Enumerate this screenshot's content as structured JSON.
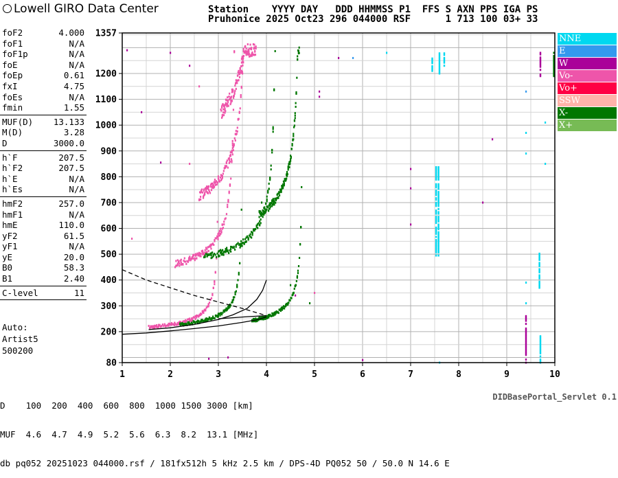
{
  "header": {
    "logo": "Lowell GIRO Data Center",
    "line1": "Station    YYYY DAY   DDD HHMMSS P1  FFS S AXN PPS IGA PS",
    "line2": "Pruhonice 2025 Oct23 296 044000 RSF      1 713 100 03+ 33"
  },
  "params": [
    {
      "k": "foF2",
      "v": "4.000"
    },
    {
      "k": "foF1",
      "v": "N/A"
    },
    {
      "k": "foF1p",
      "v": "N/A"
    },
    {
      "k": "foE",
      "v": "N/A"
    },
    {
      "k": "foEp",
      "v": "0.61"
    },
    {
      "k": "fxI",
      "v": "4.75"
    },
    {
      "k": "foEs",
      "v": "N/A"
    },
    {
      "k": "fmin",
      "v": "1.55"
    },
    {
      "sep": true
    },
    {
      "k": "MUF(D)",
      "v": "13.133"
    },
    {
      "k": "M(D)",
      "v": "3.28"
    },
    {
      "k": "D",
      "v": "3000.0"
    },
    {
      "sep": true
    },
    {
      "k": "h`F",
      "v": "207.5"
    },
    {
      "k": "h`F2",
      "v": "207.5"
    },
    {
      "k": "h`E",
      "v": "N/A"
    },
    {
      "k": "h`Es",
      "v": "N/A"
    },
    {
      "sep": true
    },
    {
      "k": "hmF2",
      "v": "257.0"
    },
    {
      "k": "hmF1",
      "v": "N/A"
    },
    {
      "k": "hmE",
      "v": "110.0"
    },
    {
      "k": "yF2",
      "v": "61.5"
    },
    {
      "k": "yF1",
      "v": "N/A"
    },
    {
      "k": "yE",
      "v": "20.0"
    },
    {
      "k": "B0",
      "v": "58.3"
    },
    {
      "k": "B1",
      "v": "2.40"
    },
    {
      "sep": true
    },
    {
      "k": "C-level",
      "v": "11"
    },
    {
      "sep": true
    }
  ],
  "auto": [
    "Auto:",
    "Artist5",
    "500200"
  ],
  "legend": [
    {
      "label": "NNE",
      "color": "#00d8f0"
    },
    {
      "label": "E",
      "color": "#3399ee"
    },
    {
      "label": "W",
      "color": "#aa0099"
    },
    {
      "label": "Vo-",
      "color": "#ee55aa"
    },
    {
      "label": "Vo+",
      "color": "#ff0044"
    },
    {
      "label": "SSW",
      "color": "#ffb3aa"
    },
    {
      "label": "X-",
      "color": "#007700"
    },
    {
      "label": "X+",
      "color": "#77bb55"
    }
  ],
  "bottom": {
    "line1": "D    100  200  400  600  800  1000 1500 3000 [km]",
    "line2": "MUF  4.6  4.7  4.9  5.2  5.6  6.3  8.2  13.1 [MHz]",
    "line3": "db pq052 20251023 044000.rsf / 181fx512h 5 kHz 2.5 km / DPS-4D PQ052 50 / 50.0 N 14.6 E"
  },
  "servlet": "DIDBasePortal_Servlet 0.1",
  "chart_data": {
    "type": "scatter",
    "xlim": [
      1,
      10
    ],
    "ylim": [
      80,
      1357
    ],
    "grid": true,
    "x_ticks": [
      "1",
      "2",
      "3",
      "4",
      "5",
      "6",
      "7",
      "8",
      "9",
      "10"
    ],
    "y_ticks": [
      "80",
      "200",
      "300",
      "400",
      "500",
      "600",
      "700",
      "800",
      "900",
      "1000",
      "1100",
      "1200",
      "1357"
    ],
    "y_tick_values": [
      80,
      200,
      300,
      400,
      500,
      600,
      700,
      800,
      900,
      1000,
      1100,
      1200,
      1357
    ],
    "traces": [
      {
        "pol": "O",
        "fmin": 1.55,
        "fo": 3.0,
        "h0": 208,
        "scale": 1.0,
        "color": "#ee55aa"
      },
      {
        "pol": "O",
        "fmin": 2.1,
        "fo": 3.35,
        "h0": 430,
        "scale": 2.05,
        "color": "#ee55aa"
      },
      {
        "pol": "O",
        "fmin": 2.6,
        "fo": 3.6,
        "h0": 650,
        "scale": 3.1,
        "color": "#ee55aa"
      },
      {
        "pol": "O",
        "fmin": 3.05,
        "fo": 3.8,
        "h0": 895,
        "scale": 4.1,
        "color": "#ee55aa"
      },
      {
        "pol": "X",
        "fmin": 2.2,
        "fo": 3.5,
        "h0": 212,
        "scale": 1.0,
        "color": "#007700"
      },
      {
        "pol": "X",
        "fmin": 2.7,
        "fo": 4.2,
        "h0": 455,
        "scale": 2.0,
        "color": "#007700"
      },
      {
        "pol": "X",
        "fmin": 3.7,
        "fo": 4.75,
        "h0": 210,
        "scale": 1.0,
        "color": "#007700"
      },
      {
        "pol": "X",
        "fmin": 3.85,
        "fo": 4.7,
        "h0": 560,
        "scale": 2.3,
        "color": "#007700"
      }
    ],
    "columns": [
      {
        "x": 7.53,
        "y0": 495,
        "y1": 840,
        "color": "#00d8f0"
      },
      {
        "x": 7.58,
        "y0": 495,
        "y1": 840,
        "color": "#00d8f0"
      },
      {
        "x": 7.6,
        "y0": 1200,
        "y1": 1285,
        "color": "#00d8f0"
      },
      {
        "x": 7.45,
        "y0": 1210,
        "y1": 1260,
        "color": "#00d8f0"
      },
      {
        "x": 7.7,
        "y0": 1230,
        "y1": 1285,
        "color": "#00d8f0"
      },
      {
        "x": 9.4,
        "y0": 80,
        "y1": 260,
        "color": "#aa0099"
      },
      {
        "x": 9.68,
        "y0": 370,
        "y1": 505,
        "color": "#00d8f0"
      },
      {
        "x": 9.7,
        "y0": 80,
        "y1": 190,
        "color": "#00d8f0"
      },
      {
        "x": 9.7,
        "y0": 1190,
        "y1": 1285,
        "color": "#aa0099"
      },
      {
        "x": 9.98,
        "y0": 1190,
        "y1": 1285,
        "color": "#007700"
      }
    ],
    "profile_curves": [
      {
        "style": "solid",
        "points": [
          [
            1.55,
            208
          ],
          [
            2.0,
            215
          ],
          [
            2.5,
            228
          ],
          [
            3.0,
            247
          ],
          [
            3.3,
            265
          ],
          [
            3.6,
            290
          ],
          [
            3.8,
            325
          ],
          [
            3.92,
            360
          ],
          [
            4.0,
            400
          ]
        ]
      },
      {
        "style": "solid",
        "points": [
          [
            1.0,
            190
          ],
          [
            1.5,
            195
          ],
          [
            2.0,
            203
          ],
          [
            2.5,
            212
          ],
          [
            3.0,
            222
          ],
          [
            3.5,
            236
          ],
          [
            3.8,
            246
          ],
          [
            4.0,
            257
          ]
        ]
      },
      {
        "style": "solid",
        "points": [
          [
            3.0,
            250
          ],
          [
            3.6,
            258
          ],
          [
            4.0,
            262
          ]
        ]
      },
      {
        "style": "dashed",
        "points": [
          [
            1.0,
            440
          ],
          [
            1.5,
            400
          ],
          [
            2.0,
            370
          ],
          [
            2.5,
            340
          ],
          [
            3.0,
            315
          ],
          [
            3.5,
            290
          ],
          [
            4.0,
            262
          ]
        ]
      }
    ]
  }
}
